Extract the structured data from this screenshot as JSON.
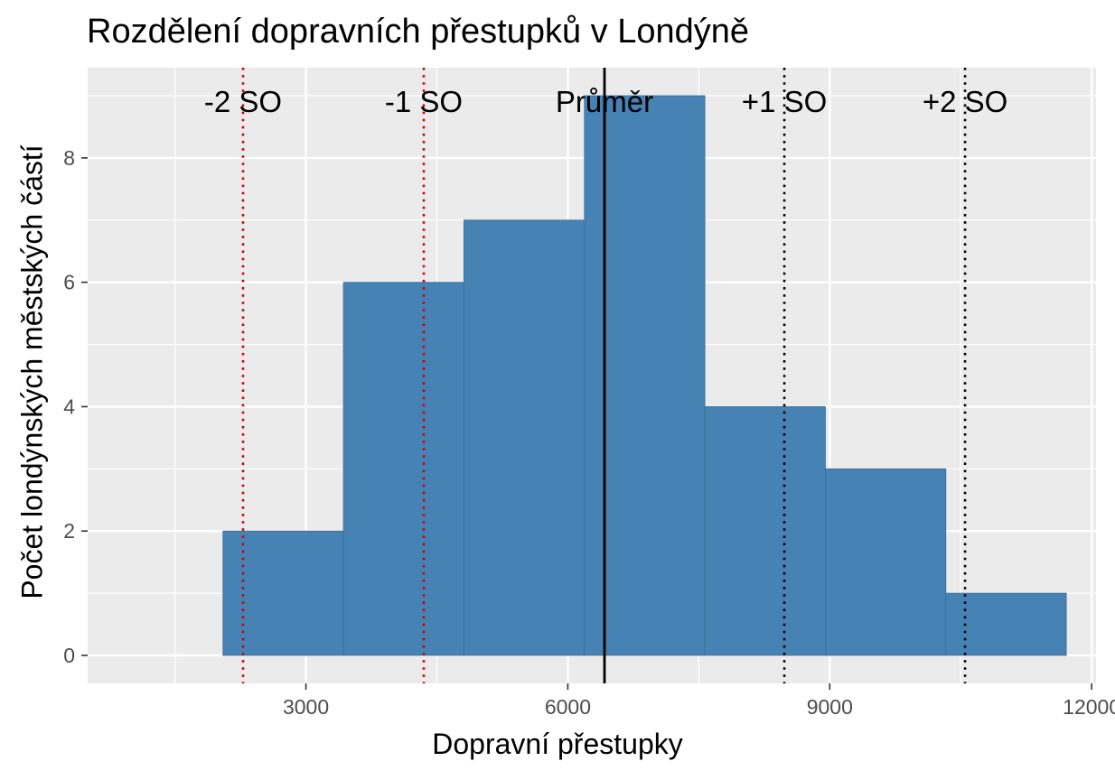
{
  "chart_data": {
    "type": "histogram",
    "title": "Rozdělení dopravních přestupků v Londýně",
    "xlabel": "Dopravní přestupky",
    "ylabel": "Počet londýnských městských částí",
    "xlim": [
      500,
      12050
    ],
    "ylim": [
      -0.45,
      9.45
    ],
    "x_ticks": [
      3000,
      6000,
      9000,
      12000
    ],
    "y_ticks": [
      0,
      2,
      4,
      6,
      8
    ],
    "bins": [
      {
        "start": 2050,
        "end": 3430,
        "count": 2
      },
      {
        "start": 3430,
        "end": 4810,
        "count": 6
      },
      {
        "start": 4810,
        "end": 6190,
        "count": 7
      },
      {
        "start": 6190,
        "end": 7570,
        "count": 9
      },
      {
        "start": 7570,
        "end": 8950,
        "count": 4
      },
      {
        "start": 8950,
        "end": 10330,
        "count": 3
      },
      {
        "start": 10330,
        "end": 11710,
        "count": 1
      }
    ],
    "bar_color": "#4682B4",
    "panel_background": "#EBEBEB",
    "grid": true,
    "reference_lines": [
      {
        "label": "-2 SO",
        "x": 2280,
        "style": "dotted",
        "color": "#CC0000"
      },
      {
        "label": "-1 SO",
        "x": 4350,
        "style": "dotted",
        "color": "#CC0000"
      },
      {
        "label": "Průměr",
        "x": 6420,
        "style": "solid",
        "color": "#000000"
      },
      {
        "label": "+1 SO",
        "x": 8480,
        "style": "dotted",
        "color": "#000000"
      },
      {
        "label": "+2 SO",
        "x": 10550,
        "style": "dotted",
        "color": "#000000"
      }
    ]
  }
}
